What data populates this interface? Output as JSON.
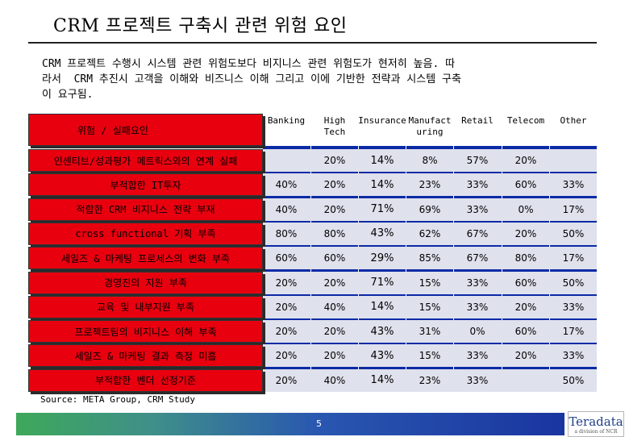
{
  "title": "CRM 프로젝트 구축시 관련 위험 요인",
  "intro": "CRM 프로젝트 수행시 시스템 관련 위험도보다 비지니스 관련 위험도가 현저히 높음. 따\n라서  CRM 추진시 고객을 이해와 비즈니스 이해 그리고 이에 기반한 전략과 시스템 구축\n이 요구됨.",
  "table": {
    "header_label": "위험 / 실패요인",
    "columns": [
      "Banking",
      "High\nTech",
      "Insurance",
      "Manufact\nuring",
      "Retail",
      "Telecom",
      "Other"
    ],
    "rows": [
      {
        "label": "인센티브/성과평가 메트릭스와의 연계 실패",
        "values": [
          "",
          "20%",
          "14%",
          "8%",
          "57%",
          "20%",
          ""
        ]
      },
      {
        "label": "부적합한 IT투자",
        "values": [
          "40%",
          "20%",
          "14%",
          "23%",
          "33%",
          "60%",
          "33%"
        ]
      },
      {
        "label": "적합한 CRM 비지니스 전략 부재",
        "values": [
          "40%",
          "20%",
          "71%",
          "69%",
          "33%",
          "0%",
          "17%"
        ]
      },
      {
        "label": "cross functional 기획 부족",
        "values": [
          "80%",
          "80%",
          "43%",
          "62%",
          "67%",
          "20%",
          "50%"
        ]
      },
      {
        "label": "세일즈 & 마케팅 프로세스의 변화 부족",
        "values": [
          "60%",
          "60%",
          "29%",
          "85%",
          "67%",
          "80%",
          "17%"
        ]
      },
      {
        "label": "경영진의 지원 부족",
        "values": [
          "20%",
          "20%",
          "71%",
          "15%",
          "33%",
          "60%",
          "50%"
        ]
      },
      {
        "label": "교육 및 내부지원 부족",
        "values": [
          "20%",
          "40%",
          "14%",
          "15%",
          "33%",
          "20%",
          "33%"
        ]
      },
      {
        "label": "프로젝트팀의 비지니스 이해 부족",
        "values": [
          "20%",
          "20%",
          "43%",
          "31%",
          "0%",
          "60%",
          "17%"
        ]
      },
      {
        "label": "세일즈 & 마케팅 결과 측정 미흡",
        "values": [
          "20%",
          "20%",
          "43%",
          "15%",
          "33%",
          "20%",
          "33%"
        ]
      },
      {
        "label": "부적합한 벤더 선정기준",
        "values": [
          "20%",
          "40%",
          "14%",
          "23%",
          "33%",
          "",
          "50%"
        ]
      }
    ]
  },
  "source": "Source: META Group, CRM Study",
  "page_number": "5",
  "logo": {
    "name": "Teradata",
    "sub": "a division of NCR"
  },
  "colors": {
    "label_red": "#e8000f",
    "panel_blue": "#0b2aa6",
    "band": "#dfe1ec"
  }
}
